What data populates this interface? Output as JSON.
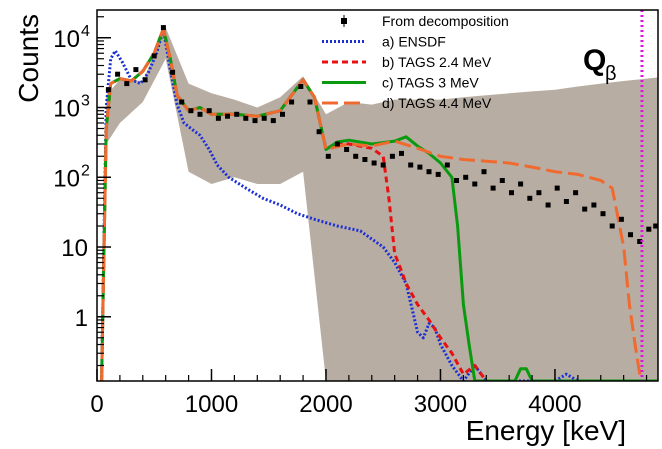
{
  "chart_data": {
    "type": "line",
    "xlabel": "Energy [keV]",
    "ylabel": "Counts",
    "xlim": [
      0,
      4900
    ],
    "ylim": [
      0.12,
      25000
    ],
    "y_scale": "log",
    "grid": false,
    "legend_position": "top-center",
    "x_ticks": [
      "0",
      "1000",
      "2000",
      "3000",
      "4000"
    ],
    "x_tick_values": [
      0,
      1000,
      2000,
      3000,
      4000
    ],
    "y_ticks": [
      {
        "value": 1,
        "label": "1",
        "sup": ""
      },
      {
        "value": 10,
        "label": "10",
        "sup": ""
      },
      {
        "value": 100,
        "label": "10",
        "sup": "2"
      },
      {
        "value": 1000,
        "label": "10",
        "sup": "3"
      },
      {
        "value": 10000,
        "label": "10",
        "sup": "4"
      }
    ],
    "q_beta": {
      "label": "Q",
      "subscript": "β",
      "energy": 4760,
      "color": "#e010e0"
    },
    "experimental_band": {
      "name": "",
      "color": "#b8ada2",
      "x": [
        80,
        200,
        400,
        600,
        800,
        1000,
        1200,
        1400,
        1600,
        1800,
        2000,
        2200,
        2400,
        2600,
        2800,
        3000,
        3200,
        3400,
        3600,
        3800,
        4000,
        4200,
        4400,
        4600,
        4800,
        4900
      ],
      "upper": [
        1500,
        2500,
        2400,
        14000,
        2200,
        1600,
        1300,
        1000,
        1400,
        2800,
        800,
        1200,
        1100,
        1300,
        1300,
        1300,
        1400,
        1500,
        1600,
        1700,
        1800,
        2000,
        2200,
        2400,
        2600,
        2700
      ],
      "lower": [
        300,
        600,
        1200,
        5000,
        120,
        80,
        100,
        80,
        80,
        120,
        0.12,
        0.12,
        0.12,
        0.12,
        0.12,
        0.12,
        0.12,
        0.12,
        0.12,
        0.12,
        0.12,
        0.12,
        0.12,
        0.12,
        0.12,
        0.12
      ]
    },
    "series": [
      {
        "name": "From decomposition",
        "kind": "points",
        "color": "#000000",
        "x": [
          100,
          180,
          260,
          340,
          420,
          500,
          580,
          660,
          740,
          820,
          900,
          980,
          1060,
          1140,
          1220,
          1300,
          1380,
          1460,
          1540,
          1620,
          1700,
          1780,
          1860,
          1940,
          2020,
          2100,
          2180,
          2260,
          2340,
          2420,
          2500,
          2580,
          2660,
          2740,
          2820,
          2900,
          2980,
          3060,
          3140,
          3220,
          3300,
          3380,
          3460,
          3540,
          3620,
          3700,
          3780,
          3860,
          3940,
          4020,
          4100,
          4180,
          4260,
          4340,
          4420,
          4500,
          4580,
          4660,
          4740,
          4820,
          4880
        ],
        "y": [
          1800,
          3000,
          2200,
          3500,
          2500,
          5500,
          14000,
          3200,
          1200,
          900,
          800,
          900,
          700,
          750,
          800,
          700,
          650,
          700,
          650,
          800,
          1200,
          2000,
          1200,
          450,
          200,
          300,
          250,
          200,
          180,
          160,
          150,
          200,
          220,
          150,
          140,
          120,
          110,
          150,
          90,
          100,
          80,
          120,
          70,
          90,
          60,
          80,
          50,
          60,
          40,
          70,
          45,
          60,
          35,
          40,
          30,
          20,
          25,
          15,
          12,
          18,
          20
        ]
      },
      {
        "name": "a) ENSDF",
        "kind": "line",
        "dash": "dotted",
        "color": "#1a2fd6",
        "x": [
          40,
          80,
          120,
          160,
          220,
          300,
          380,
          450,
          520,
          580,
          640,
          700,
          760,
          820,
          900,
          980,
          1050,
          1150,
          1300,
          1450,
          1600,
          1750,
          1900,
          2100,
          2300,
          2400,
          2500,
          2600,
          2700,
          2800,
          2850,
          2900,
          2950,
          3000,
          3100,
          3200,
          3300,
          3400,
          3500,
          3600,
          3700,
          3800,
          3900,
          4000,
          4100,
          4200
        ],
        "y": [
          0.12,
          1000,
          5000,
          6500,
          4500,
          2500,
          2200,
          3200,
          6000,
          13000,
          3500,
          1100,
          600,
          500,
          400,
          250,
          150,
          100,
          70,
          50,
          40,
          30,
          25,
          20,
          17,
          13,
          10,
          6,
          3,
          0.6,
          0.5,
          0.8,
          0.7,
          0.4,
          0.2,
          0.12,
          0.2,
          0.12,
          0.12,
          0.12,
          0.12,
          0.12,
          0.12,
          0.12,
          0.15,
          0.12
        ]
      },
      {
        "name": "b) TAGS 2.4 MeV",
        "kind": "line",
        "dash": "dashed",
        "color": "#e81010",
        "x": [
          40,
          80,
          120,
          200,
          300,
          400,
          500,
          580,
          640,
          700,
          800,
          900,
          1000,
          1200,
          1400,
          1600,
          1800,
          1900,
          2000,
          2100,
          2200,
          2300,
          2400,
          2500,
          2550,
          2600,
          2650,
          2700,
          2800,
          2900,
          3000,
          3100,
          3200,
          3300,
          3400,
          3500
        ],
        "y": [
          0.12,
          500,
          2200,
          2600,
          2400,
          3300,
          6000,
          13500,
          5000,
          1500,
          900,
          1000,
          800,
          800,
          750,
          900,
          2500,
          1400,
          250,
          320,
          300,
          280,
          260,
          200,
          50,
          8,
          5,
          3,
          1.5,
          0.9,
          0.5,
          0.3,
          0.15,
          0.2,
          0.12,
          0.12
        ]
      },
      {
        "name": "c) TAGS 3 MeV",
        "kind": "line",
        "dash": "solid",
        "color": "#0a9a10",
        "x": [
          40,
          80,
          120,
          200,
          300,
          400,
          500,
          580,
          640,
          700,
          800,
          900,
          1000,
          1200,
          1400,
          1600,
          1800,
          1900,
          2000,
          2100,
          2200,
          2400,
          2600,
          2700,
          2800,
          2900,
          3000,
          3100,
          3150,
          3200,
          3250,
          3300,
          3500,
          3650,
          3700,
          3750,
          3800,
          4000,
          4500,
          4900
        ],
        "y": [
          0.12,
          500,
          2200,
          2600,
          2400,
          3300,
          6000,
          13500,
          5000,
          1500,
          900,
          1000,
          800,
          800,
          750,
          900,
          2500,
          1400,
          250,
          320,
          340,
          300,
          330,
          380,
          280,
          220,
          160,
          100,
          20,
          1.5,
          0.4,
          0.12,
          0.12,
          0.12,
          0.18,
          0.18,
          0.12,
          0.12,
          0.12,
          0.12
        ]
      },
      {
        "name": "d) TAGS 4.4 MeV",
        "kind": "line",
        "dash": "longdash",
        "color": "#f06a30",
        "x": [
          40,
          80,
          120,
          200,
          300,
          400,
          500,
          580,
          640,
          700,
          800,
          900,
          1000,
          1200,
          1400,
          1600,
          1800,
          1900,
          2000,
          2200,
          2400,
          2600,
          2800,
          3000,
          3200,
          3400,
          3600,
          3800,
          4000,
          4200,
          4400,
          4500,
          4600,
          4650,
          4700,
          4750
        ],
        "y": [
          0.12,
          500,
          2200,
          2600,
          2400,
          3300,
          6000,
          13500,
          5000,
          1500,
          900,
          1000,
          800,
          800,
          750,
          900,
          2500,
          1400,
          250,
          300,
          280,
          330,
          260,
          200,
          180,
          170,
          160,
          140,
          120,
          110,
          90,
          70,
          10,
          1.5,
          0.4,
          0.12
        ]
      }
    ]
  }
}
